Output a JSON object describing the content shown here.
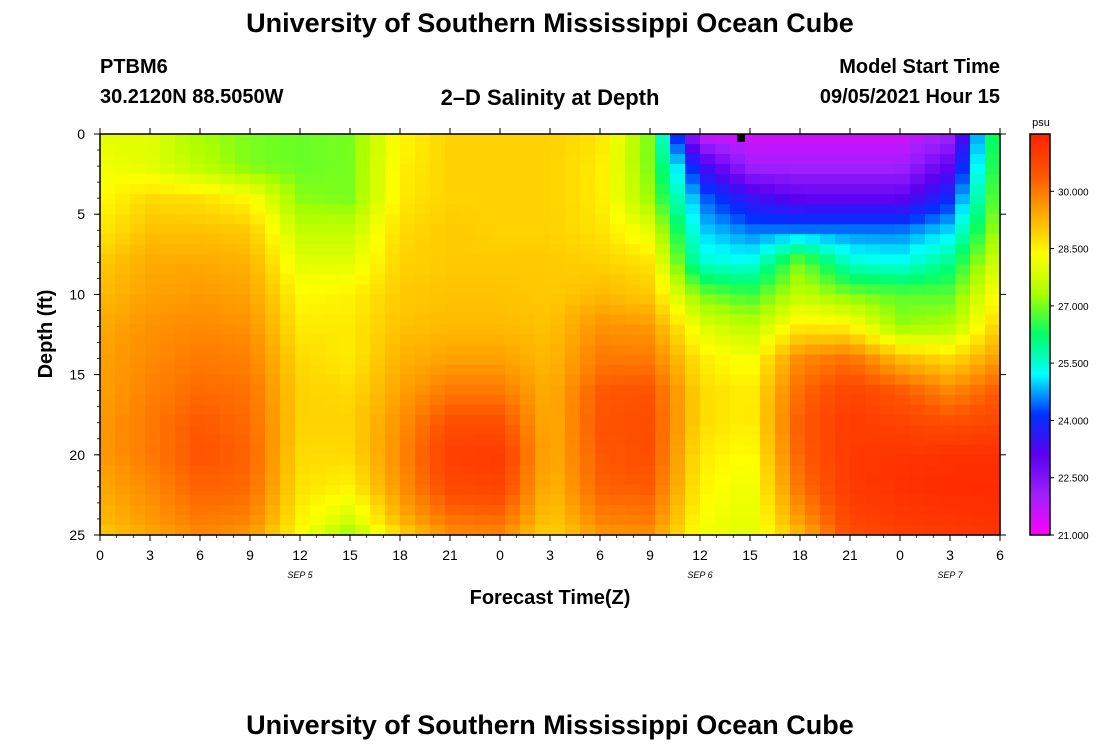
{
  "page": {
    "title_top": "University of Southern Mississippi Ocean Cube",
    "title_bottom": "University of Southern Mississippi Ocean Cube",
    "station": "PTBM6",
    "coords": "30.2120N  88.5050W",
    "plot_title": "2–D Salinity at Depth",
    "start_label": "Model Start Time",
    "start_value": "09/05/2021 Hour 15"
  },
  "colors": {
    "stops": [
      "#ff00ff",
      "#a020ff",
      "#5a00f0",
      "#0030ff",
      "#00ffff",
      "#00ff66",
      "#a8ff00",
      "#ffff00",
      "#ffaa00",
      "#ff5500",
      "#ff2200"
    ],
    "frame": "#000000"
  },
  "chart_data": {
    "type": "heatmap",
    "title": "2–D Salinity at Depth",
    "xlabel": "Forecast Time(Z)",
    "ylabel": "Depth (ft)",
    "x_range_hours": [
      0,
      54
    ],
    "y_range_ft": [
      0,
      25
    ],
    "x_ticks": [
      "0",
      "3",
      "6",
      "9",
      "12",
      "15",
      "18",
      "21",
      "0",
      "3",
      "6",
      "9",
      "12",
      "15",
      "18",
      "21",
      "0",
      "3",
      "6"
    ],
    "y_ticks": [
      "0",
      "5",
      "10",
      "15",
      "20",
      "25"
    ],
    "date_labels": [
      {
        "text": "SEP 5",
        "hour": 12
      },
      {
        "text": "SEP 6",
        "hour": 36
      },
      {
        "text": "SEP 7",
        "hour": 51
      }
    ],
    "colorbar": {
      "unit": "psu",
      "min": 21.0,
      "max": 31.5,
      "labels": [
        "30.000",
        "28.500",
        "27.000",
        "25.500",
        "24.000",
        "22.500",
        "21.000"
      ],
      "label_values": [
        30.0,
        28.5,
        27.0,
        25.5,
        24.0,
        22.5,
        21.0
      ]
    },
    "salinity_psu_grid": {
      "hours": [
        0,
        3,
        6,
        9,
        12,
        15,
        18,
        21,
        24,
        27,
        30,
        33,
        36,
        39,
        42,
        45,
        48,
        51,
        54
      ],
      "depths_ft": [
        0,
        2,
        4,
        6,
        8,
        10,
        12,
        14,
        16,
        18,
        20,
        22,
        24,
        25
      ],
      "values": [
        [
          28.0,
          28.0,
          27.3,
          27.0,
          26.9,
          27.0,
          28.4,
          28.9,
          28.9,
          28.9,
          28.7,
          27.0,
          21.5,
          21.5,
          21.5,
          21.5,
          21.5,
          22.0,
          27.0
        ],
        [
          28.2,
          28.0,
          27.5,
          27.0,
          26.9,
          27.0,
          28.5,
          28.9,
          28.9,
          28.9,
          28.6,
          27.0,
          23.5,
          22.0,
          22.0,
          22.0,
          22.0,
          23.0,
          27.0
        ],
        [
          28.4,
          28.8,
          28.7,
          28.4,
          27.1,
          27.0,
          28.6,
          28.9,
          28.9,
          28.9,
          28.6,
          27.2,
          24.5,
          23.5,
          23.0,
          23.0,
          23.0,
          24.0,
          27.2
        ],
        [
          28.6,
          29.1,
          29.1,
          29.0,
          27.6,
          27.6,
          28.8,
          29.0,
          28.9,
          28.9,
          28.7,
          28.0,
          25.0,
          24.5,
          24.5,
          24.5,
          24.5,
          25.0,
          27.5
        ],
        [
          29.0,
          29.4,
          29.4,
          29.3,
          28.0,
          28.0,
          28.9,
          29.0,
          29.0,
          29.0,
          28.9,
          28.7,
          25.5,
          25.3,
          27.0,
          25.5,
          25.3,
          26.0,
          28.0
        ],
        [
          29.2,
          29.5,
          29.6,
          29.5,
          28.4,
          28.5,
          29.0,
          29.1,
          29.1,
          29.0,
          29.2,
          29.0,
          27.0,
          26.6,
          27.6,
          27.0,
          26.8,
          26.8,
          28.5
        ],
        [
          29.4,
          29.7,
          29.8,
          29.7,
          28.6,
          28.6,
          29.1,
          29.2,
          29.2,
          29.1,
          29.7,
          29.6,
          28.0,
          27.5,
          28.6,
          28.5,
          27.2,
          27.4,
          29.0
        ],
        [
          29.5,
          29.8,
          30.0,
          29.9,
          28.8,
          28.6,
          29.3,
          29.5,
          29.5,
          29.2,
          30.0,
          30.0,
          28.6,
          28.2,
          29.8,
          30.1,
          29.2,
          28.8,
          29.6
        ],
        [
          29.5,
          29.9,
          30.2,
          30.1,
          28.9,
          28.8,
          29.5,
          30.0,
          30.0,
          29.3,
          30.4,
          30.5,
          28.8,
          28.5,
          30.2,
          30.8,
          30.4,
          29.8,
          30.4
        ],
        [
          29.6,
          30.0,
          30.4,
          30.2,
          28.9,
          28.9,
          29.7,
          30.6,
          30.6,
          29.3,
          30.5,
          30.6,
          28.8,
          28.5,
          30.4,
          31.0,
          30.8,
          30.6,
          30.8
        ],
        [
          29.6,
          30.0,
          30.5,
          30.3,
          28.8,
          28.8,
          29.8,
          30.9,
          31.0,
          29.3,
          30.4,
          30.6,
          28.6,
          28.3,
          30.3,
          31.0,
          31.1,
          31.2,
          31.2
        ],
        [
          29.4,
          29.8,
          30.3,
          30.2,
          28.7,
          28.5,
          29.7,
          30.7,
          30.8,
          29.2,
          30.3,
          30.4,
          28.5,
          28.1,
          30.1,
          31.0,
          31.2,
          31.3,
          31.3
        ],
        [
          29.2,
          29.6,
          30.0,
          29.9,
          28.5,
          27.8,
          29.3,
          30.1,
          30.2,
          29.0,
          29.9,
          30.0,
          28.3,
          28.0,
          29.6,
          30.8,
          31.0,
          31.1,
          31.2
        ],
        [
          29.0,
          29.4,
          29.8,
          29.6,
          28.3,
          27.2,
          28.8,
          29.7,
          29.8,
          28.8,
          29.6,
          29.7,
          28.2,
          28.0,
          29.2,
          30.6,
          30.9,
          31.0,
          31.1
        ]
      ]
    }
  },
  "axes": {
    "xlabel": "Forecast Time(Z)",
    "ylabel": "Depth (ft)"
  }
}
